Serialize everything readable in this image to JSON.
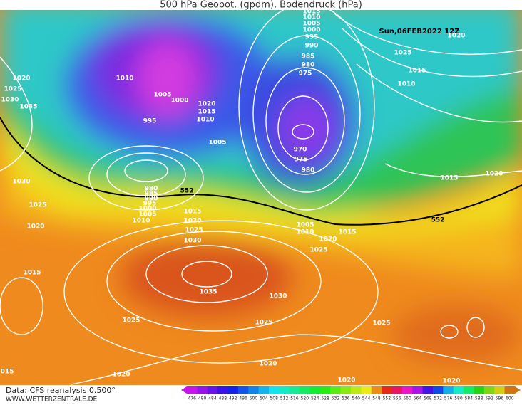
{
  "header": {
    "title": "500 hPa Geopot. (gpdm), Bodendruck (hPa)",
    "date": "Sun,06FEB2022 12Z"
  },
  "isobar_labels": [
    "1020",
    "1025",
    "1030",
    "1035",
    "1010",
    "1005",
    "1000",
    "995",
    "1020",
    "1015",
    "1010",
    "1005",
    "980",
    "985",
    "990",
    "995",
    "1000",
    "1005",
    "1010",
    "552",
    "1015",
    "1020",
    "1025",
    "1030",
    "1030",
    "1025",
    "1020",
    "1015",
    "1035",
    "1030",
    "1025",
    "1025",
    "1020",
    "1020",
    "1020",
    "1020",
    "1025",
    "015",
    "1015",
    "1010",
    "1005",
    "1000",
    "995",
    "990",
    "985",
    "980",
    "975",
    "970",
    "975",
    "980",
    "1005",
    "1010",
    "1020",
    "1015",
    "1025",
    "552",
    "1015",
    "1020",
    "1025",
    "1015",
    "1010",
    "1020"
  ],
  "footer": {
    "source": "Data: CFS reanalysis 0.500°",
    "site": "WWW.WETTERZENTRALE.DE"
  },
  "colorbar": {
    "ticks": [
      476,
      480,
      484,
      488,
      492,
      496,
      500,
      504,
      508,
      512,
      516,
      520,
      524,
      528,
      532,
      536,
      540,
      544,
      548,
      552,
      556,
      560,
      564,
      568,
      572,
      576,
      580,
      584,
      588,
      592,
      596,
      600
    ]
  }
}
